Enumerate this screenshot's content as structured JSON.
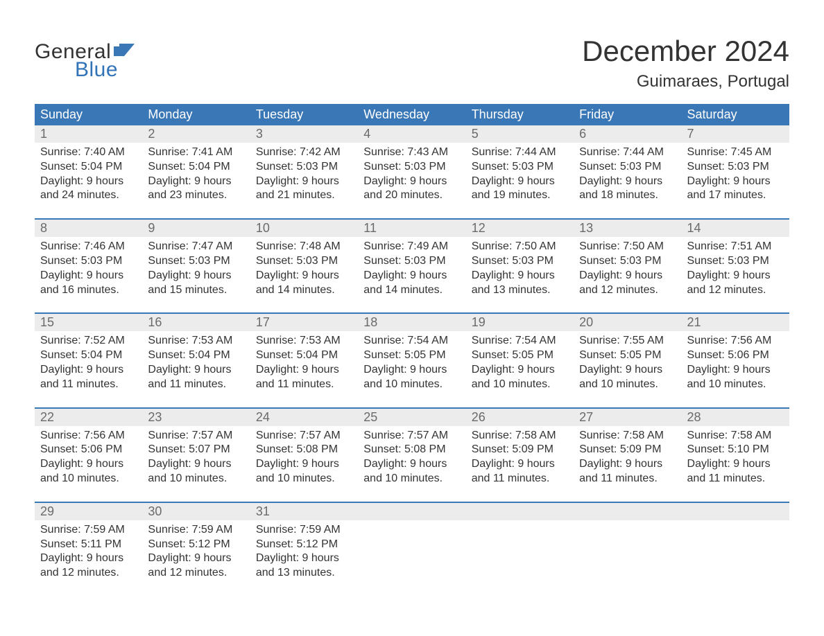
{
  "brand": {
    "word1": "General",
    "word2": "Blue",
    "flag_color": "#3a77b7",
    "word1_color": "#333333",
    "word2_color": "#3273b8"
  },
  "header": {
    "title": "December 2024",
    "location": "Guimaraes, Portugal"
  },
  "colors": {
    "header_bg": "#3a77b7",
    "header_text": "#ffffff",
    "daynum_bg": "#ececec",
    "daynum_text": "#6a6a6a",
    "body_text": "#333333",
    "week_divider": "#3a77b7",
    "page_bg": "#ffffff"
  },
  "day_names": [
    "Sunday",
    "Monday",
    "Tuesday",
    "Wednesday",
    "Thursday",
    "Friday",
    "Saturday"
  ],
  "weeks": [
    [
      {
        "n": "1",
        "sr": "Sunrise: 7:40 AM",
        "ss": "Sunset: 5:04 PM",
        "d1": "Daylight: 9 hours",
        "d2": "and 24 minutes."
      },
      {
        "n": "2",
        "sr": "Sunrise: 7:41 AM",
        "ss": "Sunset: 5:04 PM",
        "d1": "Daylight: 9 hours",
        "d2": "and 23 minutes."
      },
      {
        "n": "3",
        "sr": "Sunrise: 7:42 AM",
        "ss": "Sunset: 5:03 PM",
        "d1": "Daylight: 9 hours",
        "d2": "and 21 minutes."
      },
      {
        "n": "4",
        "sr": "Sunrise: 7:43 AM",
        "ss": "Sunset: 5:03 PM",
        "d1": "Daylight: 9 hours",
        "d2": "and 20 minutes."
      },
      {
        "n": "5",
        "sr": "Sunrise: 7:44 AM",
        "ss": "Sunset: 5:03 PM",
        "d1": "Daylight: 9 hours",
        "d2": "and 19 minutes."
      },
      {
        "n": "6",
        "sr": "Sunrise: 7:44 AM",
        "ss": "Sunset: 5:03 PM",
        "d1": "Daylight: 9 hours",
        "d2": "and 18 minutes."
      },
      {
        "n": "7",
        "sr": "Sunrise: 7:45 AM",
        "ss": "Sunset: 5:03 PM",
        "d1": "Daylight: 9 hours",
        "d2": "and 17 minutes."
      }
    ],
    [
      {
        "n": "8",
        "sr": "Sunrise: 7:46 AM",
        "ss": "Sunset: 5:03 PM",
        "d1": "Daylight: 9 hours",
        "d2": "and 16 minutes."
      },
      {
        "n": "9",
        "sr": "Sunrise: 7:47 AM",
        "ss": "Sunset: 5:03 PM",
        "d1": "Daylight: 9 hours",
        "d2": "and 15 minutes."
      },
      {
        "n": "10",
        "sr": "Sunrise: 7:48 AM",
        "ss": "Sunset: 5:03 PM",
        "d1": "Daylight: 9 hours",
        "d2": "and 14 minutes."
      },
      {
        "n": "11",
        "sr": "Sunrise: 7:49 AM",
        "ss": "Sunset: 5:03 PM",
        "d1": "Daylight: 9 hours",
        "d2": "and 14 minutes."
      },
      {
        "n": "12",
        "sr": "Sunrise: 7:50 AM",
        "ss": "Sunset: 5:03 PM",
        "d1": "Daylight: 9 hours",
        "d2": "and 13 minutes."
      },
      {
        "n": "13",
        "sr": "Sunrise: 7:50 AM",
        "ss": "Sunset: 5:03 PM",
        "d1": "Daylight: 9 hours",
        "d2": "and 12 minutes."
      },
      {
        "n": "14",
        "sr": "Sunrise: 7:51 AM",
        "ss": "Sunset: 5:03 PM",
        "d1": "Daylight: 9 hours",
        "d2": "and 12 minutes."
      }
    ],
    [
      {
        "n": "15",
        "sr": "Sunrise: 7:52 AM",
        "ss": "Sunset: 5:04 PM",
        "d1": "Daylight: 9 hours",
        "d2": "and 11 minutes."
      },
      {
        "n": "16",
        "sr": "Sunrise: 7:53 AM",
        "ss": "Sunset: 5:04 PM",
        "d1": "Daylight: 9 hours",
        "d2": "and 11 minutes."
      },
      {
        "n": "17",
        "sr": "Sunrise: 7:53 AM",
        "ss": "Sunset: 5:04 PM",
        "d1": "Daylight: 9 hours",
        "d2": "and 11 minutes."
      },
      {
        "n": "18",
        "sr": "Sunrise: 7:54 AM",
        "ss": "Sunset: 5:05 PM",
        "d1": "Daylight: 9 hours",
        "d2": "and 10 minutes."
      },
      {
        "n": "19",
        "sr": "Sunrise: 7:54 AM",
        "ss": "Sunset: 5:05 PM",
        "d1": "Daylight: 9 hours",
        "d2": "and 10 minutes."
      },
      {
        "n": "20",
        "sr": "Sunrise: 7:55 AM",
        "ss": "Sunset: 5:05 PM",
        "d1": "Daylight: 9 hours",
        "d2": "and 10 minutes."
      },
      {
        "n": "21",
        "sr": "Sunrise: 7:56 AM",
        "ss": "Sunset: 5:06 PM",
        "d1": "Daylight: 9 hours",
        "d2": "and 10 minutes."
      }
    ],
    [
      {
        "n": "22",
        "sr": "Sunrise: 7:56 AM",
        "ss": "Sunset: 5:06 PM",
        "d1": "Daylight: 9 hours",
        "d2": "and 10 minutes."
      },
      {
        "n": "23",
        "sr": "Sunrise: 7:57 AM",
        "ss": "Sunset: 5:07 PM",
        "d1": "Daylight: 9 hours",
        "d2": "and 10 minutes."
      },
      {
        "n": "24",
        "sr": "Sunrise: 7:57 AM",
        "ss": "Sunset: 5:08 PM",
        "d1": "Daylight: 9 hours",
        "d2": "and 10 minutes."
      },
      {
        "n": "25",
        "sr": "Sunrise: 7:57 AM",
        "ss": "Sunset: 5:08 PM",
        "d1": "Daylight: 9 hours",
        "d2": "and 10 minutes."
      },
      {
        "n": "26",
        "sr": "Sunrise: 7:58 AM",
        "ss": "Sunset: 5:09 PM",
        "d1": "Daylight: 9 hours",
        "d2": "and 11 minutes."
      },
      {
        "n": "27",
        "sr": "Sunrise: 7:58 AM",
        "ss": "Sunset: 5:09 PM",
        "d1": "Daylight: 9 hours",
        "d2": "and 11 minutes."
      },
      {
        "n": "28",
        "sr": "Sunrise: 7:58 AM",
        "ss": "Sunset: 5:10 PM",
        "d1": "Daylight: 9 hours",
        "d2": "and 11 minutes."
      }
    ],
    [
      {
        "n": "29",
        "sr": "Sunrise: 7:59 AM",
        "ss": "Sunset: 5:11 PM",
        "d1": "Daylight: 9 hours",
        "d2": "and 12 minutes."
      },
      {
        "n": "30",
        "sr": "Sunrise: 7:59 AM",
        "ss": "Sunset: 5:12 PM",
        "d1": "Daylight: 9 hours",
        "d2": "and 12 minutes."
      },
      {
        "n": "31",
        "sr": "Sunrise: 7:59 AM",
        "ss": "Sunset: 5:12 PM",
        "d1": "Daylight: 9 hours",
        "d2": "and 13 minutes."
      },
      {
        "empty": true
      },
      {
        "empty": true
      },
      {
        "empty": true
      },
      {
        "empty": true
      }
    ]
  ]
}
